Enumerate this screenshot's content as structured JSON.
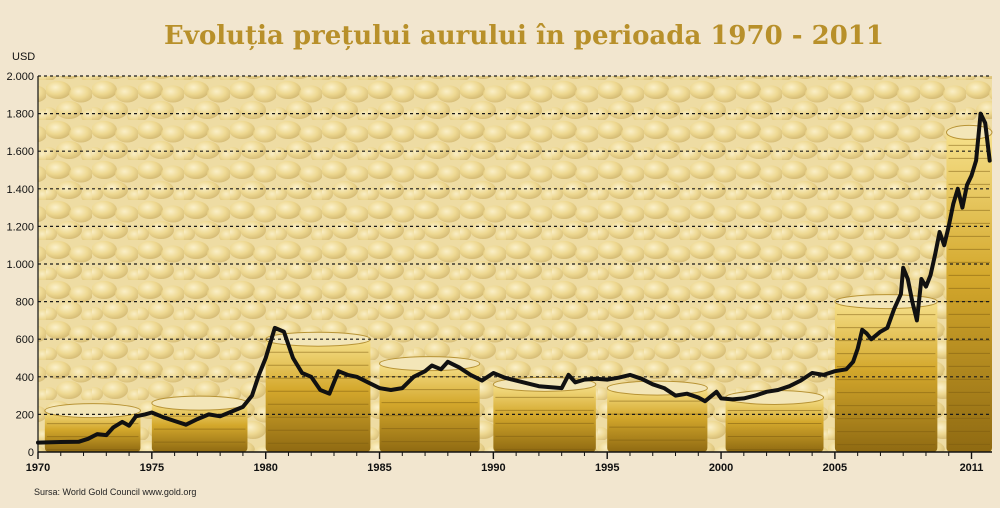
{
  "chart_data": {
    "type": "line",
    "title": "Evoluția prețului aurului în perioada 1970 - 2011",
    "ylabel": "USD",
    "xlabel": "",
    "source": "Sursa: World Gold Council www.gold.org",
    "ylim": [
      0,
      2000
    ],
    "xlim": [
      1970,
      2011.9
    ],
    "y_ticks": [
      0,
      200,
      400,
      600,
      800,
      1000,
      1200,
      1400,
      1600,
      1800,
      2000
    ],
    "y_tick_labels": [
      "0",
      "200",
      "400",
      "600",
      "800",
      "1.000",
      "1.200",
      "1.400",
      "1.600",
      "1.800",
      "2.000"
    ],
    "x_ticks": [
      1970,
      1975,
      1980,
      1985,
      1990,
      1995,
      2000,
      2005,
      2011
    ],
    "x_tick_labels": [
      "1970",
      "1975",
      "1980",
      "1985",
      "1990",
      "1995",
      "2000",
      "2005",
      "2011"
    ],
    "grid": true,
    "line_color": "#111111",
    "series": [
      {
        "x": [
          1970.0,
          1971.0,
          1971.8,
          1972.2,
          1972.6,
          1973.0,
          1973.3,
          1973.7,
          1974.0,
          1974.3,
          1974.7,
          1975.0,
          1975.5,
          1976.0,
          1976.5,
          1977.0,
          1977.5,
          1978.0,
          1978.5,
          1979.0,
          1979.4,
          1979.7,
          1980.0,
          1980.4,
          1980.8,
          1981.2,
          1981.6,
          1982.0,
          1982.4,
          1982.8,
          1983.2,
          1983.6,
          1984.0,
          1984.5,
          1985.0,
          1985.5,
          1986.0,
          1986.5,
          1987.0,
          1987.3,
          1987.7,
          1988.0,
          1988.5,
          1989.0,
          1989.5,
          1990.0,
          1990.5,
          1991.0,
          1992.0,
          1993.0,
          1993.3,
          1993.6,
          1994.0,
          1994.5,
          1995.0,
          1995.5,
          1996.0,
          1996.5,
          1997.0,
          1997.5,
          1998.0,
          1998.5,
          1999.0,
          1999.3,
          1999.6,
          1999.8,
          2000.0,
          2000.5,
          2001.0,
          2001.5,
          2002.0,
          2002.5,
          2003.0,
          2003.5,
          2004.0,
          2004.5,
          2005.0,
          2005.5,
          2005.8,
          2006.0,
          2006.2,
          2006.4,
          2006.6,
          2006.8,
          2007.0,
          2007.3,
          2007.6,
          2007.9,
          2008.0,
          2008.2,
          2008.4,
          2008.6,
          2008.8,
          2009.0,
          2009.2,
          2009.4,
          2009.6,
          2009.8,
          2010.0,
          2010.2,
          2010.4,
          2010.6,
          2010.8,
          2011.0,
          2011.2,
          2011.4,
          2011.6,
          2011.8
        ],
        "y": [
          50,
          53,
          55,
          70,
          95,
          90,
          130,
          160,
          140,
          190,
          200,
          210,
          185,
          165,
          145,
          175,
          200,
          190,
          215,
          240,
          300,
          410,
          500,
          660,
          640,
          500,
          420,
          400,
          330,
          310,
          430,
          410,
          400,
          370,
          340,
          330,
          340,
          400,
          430,
          460,
          440,
          480,
          450,
          410,
          380,
          420,
          395,
          380,
          350,
          340,
          410,
          370,
          385,
          390,
          385,
          395,
          410,
          390,
          360,
          340,
          300,
          310,
          290,
          270,
          300,
          320,
          285,
          280,
          285,
          300,
          320,
          330,
          350,
          380,
          420,
          410,
          430,
          440,
          480,
          550,
          650,
          630,
          600,
          620,
          640,
          660,
          760,
          840,
          980,
          920,
          800,
          700,
          920,
          880,
          940,
          1050,
          1170,
          1100,
          1200,
          1320,
          1400,
          1300,
          1420,
          1470,
          1550,
          1800,
          1750,
          1550
        ]
      }
    ]
  }
}
